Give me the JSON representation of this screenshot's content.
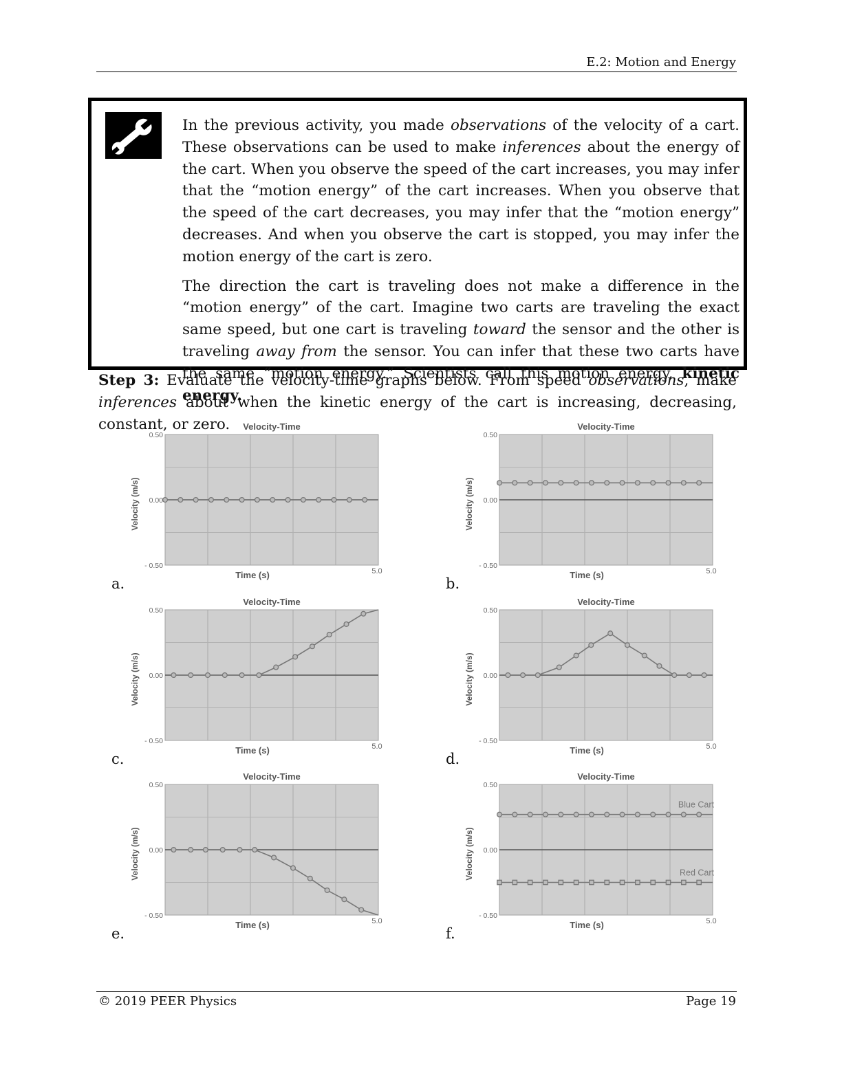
{
  "header": {
    "title": "E.2: Motion and Energy"
  },
  "tool_box": {
    "icon": "wrench-icon",
    "p1_a": "In the previous activity, you made ",
    "p1_b": "observations",
    "p1_c": " of the velocity of a cart.  These observations can be used to make ",
    "p1_d": "inferences",
    "p1_e": " about the energy of the cart.  When you observe the speed of the cart increases, you may infer that the “motion energy” of the cart increases.  When you observe that the speed of the cart decreases, you may infer that the “motion energy” decreases.  And when you observe the cart is stopped, you may infer the motion energy of the cart is zero.",
    "p2_a": "The direction the cart is traveling does not make a difference in the “motion energy” of the cart.  Imagine two carts are traveling the exact same speed, but one cart is traveling ",
    "p2_b": "toward",
    "p2_c": " the sensor and the other is traveling ",
    "p2_d": "away from",
    "p2_e": " the sensor.  You can infer that these two carts have the same “motion energy.”  Scientists call this motion energy, ",
    "p2_f": "kinetic energy."
  },
  "step": {
    "label": "Step 3:",
    "text_a": " Evaluate the velocity-time graphs below.  From speed ",
    "text_b": "observations",
    "text_c": ", make ",
    "text_d": "inferences",
    "text_e": " about when the kinetic energy of the cart is increasing, decreasing, constant, or zero."
  },
  "chart_data": [
    {
      "letter": "a.",
      "type": "line",
      "title": "Velocity-Time",
      "xlabel": "Time (s)",
      "ylabel": "Velocity (m/s)",
      "xlim": [
        0,
        5.0
      ],
      "ylim": [
        -0.5,
        0.5
      ],
      "x_tick_label": "5.0",
      "y_tick_labels": [
        "0.50",
        "0.00",
        "- 0.50"
      ],
      "grid": true,
      "series": [
        {
          "marker": "circle",
          "x": [
            0.0,
            0.36,
            0.72,
            1.08,
            1.44,
            1.8,
            2.16,
            2.52,
            2.88,
            3.24,
            3.6,
            3.96,
            4.32,
            4.68
          ],
          "y": [
            0,
            0,
            0,
            0,
            0,
            0,
            0,
            0,
            0,
            0,
            0,
            0,
            0,
            0
          ]
        }
      ]
    },
    {
      "letter": "b.",
      "type": "line",
      "title": "Velocity-Time",
      "xlabel": "Time (s)",
      "ylabel": "Velocity (m/s)",
      "xlim": [
        0,
        5.0
      ],
      "ylim": [
        -0.5,
        0.5
      ],
      "x_tick_label": "5.0",
      "y_tick_labels": [
        "0.50",
        "0.00",
        "- 0.50"
      ],
      "grid": true,
      "series": [
        {
          "marker": "circle",
          "x": [
            0.0,
            0.36,
            0.72,
            1.08,
            1.44,
            1.8,
            2.16,
            2.52,
            2.88,
            3.24,
            3.6,
            3.96,
            4.32,
            4.68
          ],
          "y": [
            0.13,
            0.13,
            0.13,
            0.13,
            0.13,
            0.13,
            0.13,
            0.13,
            0.13,
            0.13,
            0.13,
            0.13,
            0.13,
            0.13
          ]
        }
      ]
    },
    {
      "letter": "c.",
      "type": "line",
      "title": "Velocity-Time",
      "xlabel": "Time (s)",
      "ylabel": "Velocity (m/s)",
      "xlim": [
        0,
        5.0
      ],
      "ylim": [
        -0.5,
        0.5
      ],
      "x_tick_label": "5.0",
      "y_tick_labels": [
        "0.50",
        "0.00",
        "- 0.50"
      ],
      "grid": true,
      "series": [
        {
          "marker": "circle",
          "x": [
            0.2,
            0.6,
            1.0,
            1.4,
            1.8,
            2.2,
            2.6,
            3.05,
            3.45,
            3.85,
            4.25,
            4.65
          ],
          "y": [
            0,
            0,
            0,
            0,
            0,
            0,
            0.06,
            0.14,
            0.22,
            0.31,
            0.39,
            0.47
          ]
        }
      ]
    },
    {
      "letter": "d.",
      "type": "line",
      "title": "Velocity-Time",
      "xlabel": "Time (s)",
      "ylabel": "Velocity (m/s)",
      "xlim": [
        0,
        5.0
      ],
      "ylim": [
        -0.5,
        0.5
      ],
      "x_tick_label": "5.0",
      "y_tick_labels": [
        "0.50",
        "0.00",
        "- 0.50"
      ],
      "grid": true,
      "series": [
        {
          "marker": "circle",
          "x": [
            0.2,
            0.55,
            0.9,
            1.4,
            1.8,
            2.15,
            2.6,
            3.0,
            3.4,
            3.75,
            4.1,
            4.45,
            4.8
          ],
          "y": [
            0,
            0,
            0,
            0.06,
            0.15,
            0.23,
            0.32,
            0.23,
            0.15,
            0.07,
            0,
            0,
            0
          ]
        }
      ]
    },
    {
      "letter": "e.",
      "type": "line",
      "title": "Velocity-Time",
      "xlabel": "Time (s)",
      "ylabel": "Velocity (m/s)",
      "xlim": [
        0,
        5.0
      ],
      "ylim": [
        -0.5,
        0.5
      ],
      "x_tick_label": "5.0",
      "y_tick_labels": [
        "0.50",
        "0.00",
        "- 0.50"
      ],
      "grid": true,
      "series": [
        {
          "marker": "circle",
          "x": [
            0.2,
            0.6,
            0.95,
            1.35,
            1.75,
            2.1,
            2.55,
            3.0,
            3.4,
            3.8,
            4.2,
            4.6
          ],
          "y": [
            0,
            0,
            0,
            0,
            0,
            0,
            -0.06,
            -0.14,
            -0.22,
            -0.31,
            -0.38,
            -0.46
          ]
        }
      ]
    },
    {
      "letter": "f.",
      "type": "line",
      "title": "Velocity-Time",
      "xlabel": "Time (s)",
      "ylabel": "Velocity (m/s)",
      "xlim": [
        0,
        5.0
      ],
      "ylim": [
        -0.5,
        0.5
      ],
      "x_tick_label": "5.0",
      "y_tick_labels": [
        "0.50",
        "0.00",
        "- 0.50"
      ],
      "grid": true,
      "series": [
        {
          "name": "Blue Cart",
          "marker": "circle",
          "x": [
            0.0,
            0.36,
            0.72,
            1.08,
            1.44,
            1.8,
            2.16,
            2.52,
            2.88,
            3.24,
            3.6,
            3.96,
            4.32,
            4.68
          ],
          "y": [
            0.27,
            0.27,
            0.27,
            0.27,
            0.27,
            0.27,
            0.27,
            0.27,
            0.27,
            0.27,
            0.27,
            0.27,
            0.27,
            0.27
          ]
        },
        {
          "name": "Red Cart",
          "marker": "square",
          "x": [
            0.0,
            0.36,
            0.72,
            1.08,
            1.44,
            1.8,
            2.16,
            2.52,
            2.88,
            3.24,
            3.6,
            3.96,
            4.32,
            4.68
          ],
          "y": [
            -0.25,
            -0.25,
            -0.25,
            -0.25,
            -0.25,
            -0.25,
            -0.25,
            -0.25,
            -0.25,
            -0.25,
            -0.25,
            -0.25,
            -0.25,
            -0.25
          ]
        }
      ]
    }
  ],
  "footer": {
    "copyright": "© 2019 PEER Physics",
    "page": "Page 19"
  }
}
